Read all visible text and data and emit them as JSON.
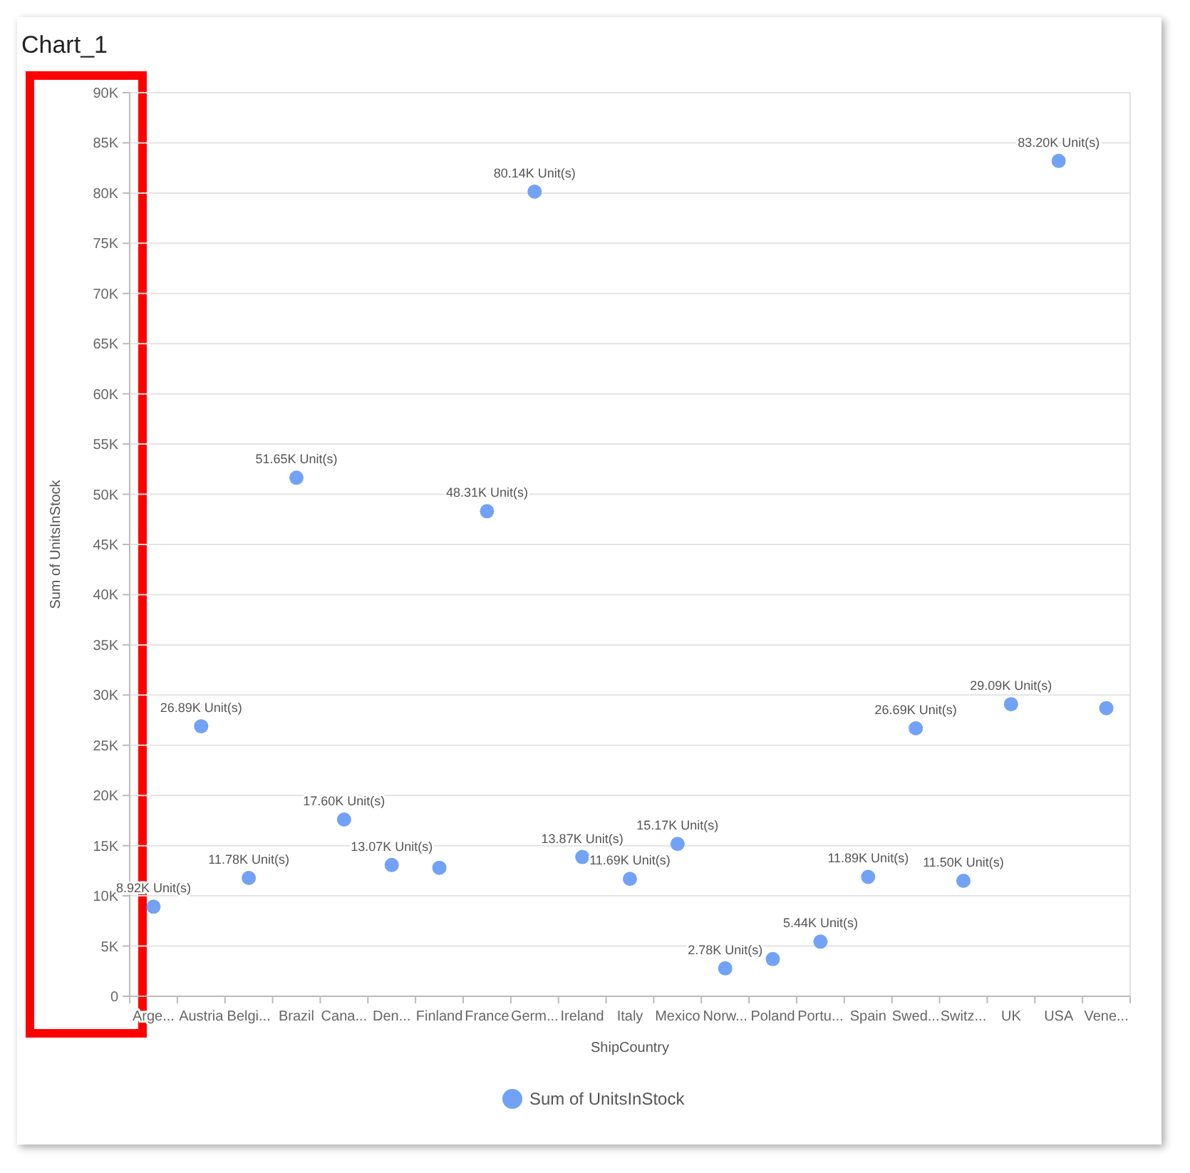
{
  "chart_data": {
    "type": "scatter",
    "title": "Chart_1",
    "xlabel": "ShipCountry",
    "ylabel": "Sum of UnitsInStock",
    "categories": [
      "Arge...",
      "Austria",
      "Belgi...",
      "Brazil",
      "Cana...",
      "Den...",
      "Finland",
      "France",
      "Germ...",
      "Ireland",
      "Italy",
      "Mexico",
      "Norw...",
      "Poland",
      "Portu...",
      "Spain",
      "Swed...",
      "Switz...",
      "UK",
      "USA",
      "Vene..."
    ],
    "series": [
      {
        "name": "Sum of UnitsInStock",
        "color": "#72a2f6",
        "values": [
          8920,
          26890,
          11780,
          51650,
          17600,
          13070,
          12800,
          48310,
          80140,
          13870,
          11690,
          15170,
          2780,
          3700,
          5440,
          11890,
          26690,
          11500,
          29090,
          83200,
          28700
        ],
        "value_labels": [
          "8.92K Unit(s)",
          "26.89K Unit(s)",
          "11.78K Unit(s)",
          "51.65K Unit(s)",
          "17.60K Unit(s)",
          "13.07K Unit(s)",
          null,
          "48.31K Unit(s)",
          "80.14K Unit(s)",
          "13.87K Unit(s)",
          "11.69K Unit(s)",
          "15.17K Unit(s)",
          "2.78K Unit(s)",
          null,
          "5.44K Unit(s)",
          "11.89K Unit(s)",
          "26.69K Unit(s)",
          "11.50K Unit(s)",
          "29.09K Unit(s)",
          "83.20K Unit(s)",
          null
        ]
      }
    ],
    "ylim": [
      0,
      90000
    ],
    "yticks": [
      {
        "value": 0,
        "label": "0"
      },
      {
        "value": 5000,
        "label": "5K"
      },
      {
        "value": 10000,
        "label": "10K"
      },
      {
        "value": 15000,
        "label": "15K"
      },
      {
        "value": 20000,
        "label": "20K"
      },
      {
        "value": 25000,
        "label": "25K"
      },
      {
        "value": 30000,
        "label": "30K"
      },
      {
        "value": 35000,
        "label": "35K"
      },
      {
        "value": 40000,
        "label": "40K"
      },
      {
        "value": 45000,
        "label": "45K"
      },
      {
        "value": 50000,
        "label": "50K"
      },
      {
        "value": 55000,
        "label": "55K"
      },
      {
        "value": 60000,
        "label": "60K"
      },
      {
        "value": 65000,
        "label": "65K"
      },
      {
        "value": 70000,
        "label": "70K"
      },
      {
        "value": 75000,
        "label": "75K"
      },
      {
        "value": 80000,
        "label": "80K"
      },
      {
        "value": 85000,
        "label": "85K"
      },
      {
        "value": 90000,
        "label": "90K"
      }
    ],
    "grid": "y",
    "legend": "bottom",
    "marker": "circle"
  }
}
